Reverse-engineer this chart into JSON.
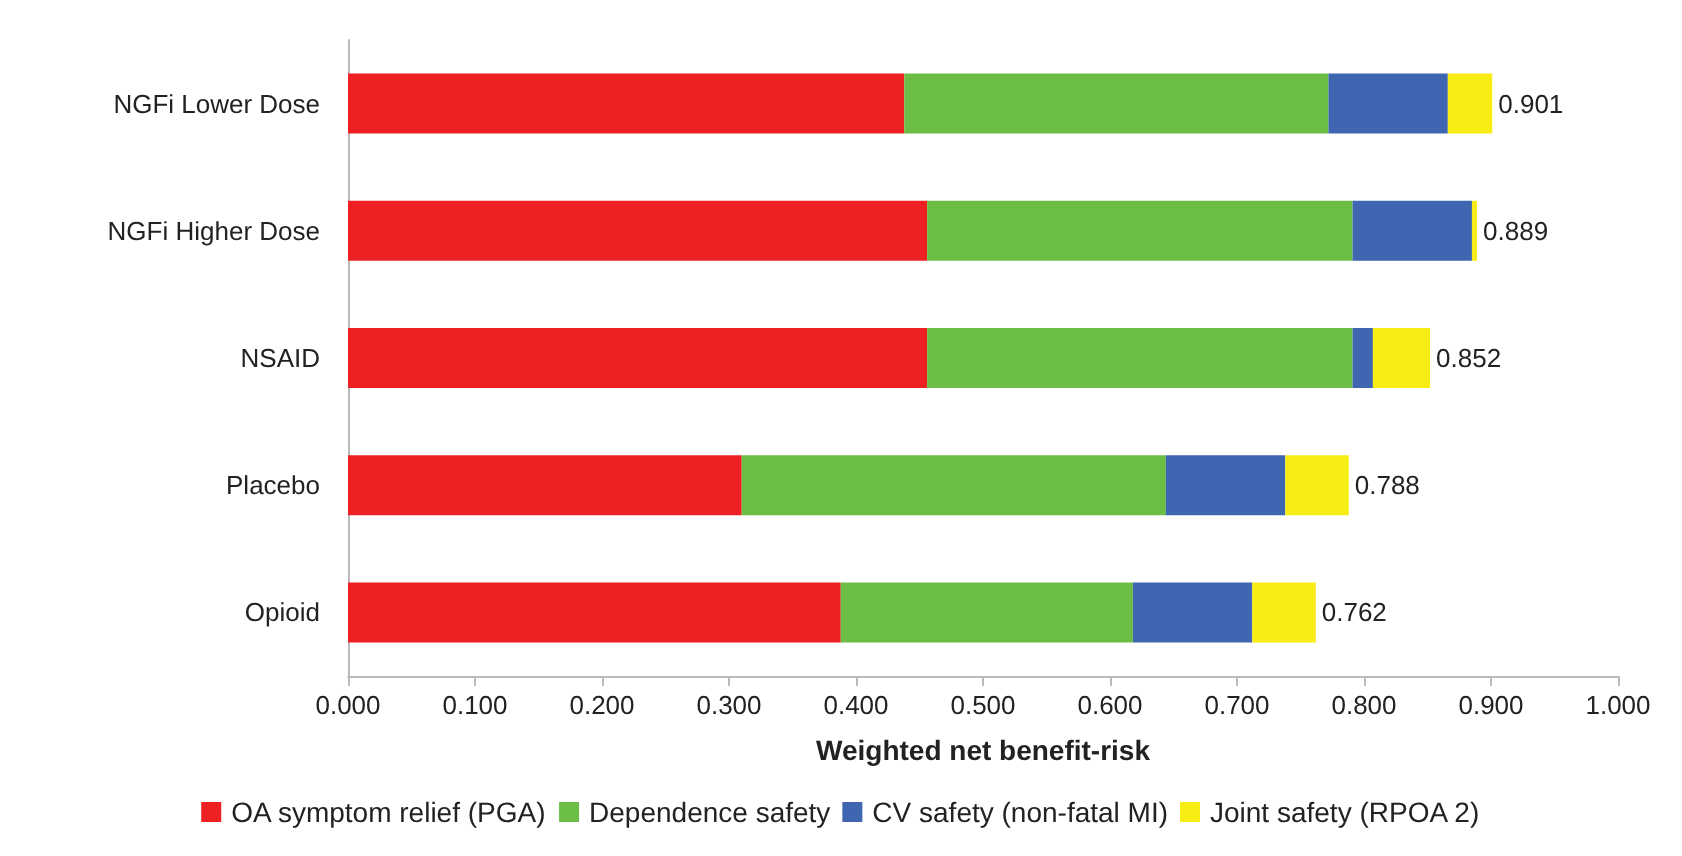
{
  "chart_data": {
    "type": "bar",
    "orientation": "horizontal",
    "stacked": true,
    "xlabel": "Weighted net benefit-risk",
    "categories": [
      "NGFi Lower Dose",
      "NGFi Higher Dose",
      "NSAID",
      "Placebo",
      "Opioid"
    ],
    "series": [
      {
        "name": "OA symptom relief (PGA)",
        "color": "#ed2024",
        "values": [
          0.438,
          0.456,
          0.456,
          0.31,
          0.388
        ]
      },
      {
        "name": "Dependence safety",
        "color": "#6cbd45",
        "values": [
          0.334,
          0.335,
          0.335,
          0.334,
          0.23
        ]
      },
      {
        "name": "CV safety (non-fatal MI)",
        "color": "#3f67b1",
        "values": [
          0.094,
          0.094,
          0.016,
          0.094,
          0.094
        ]
      },
      {
        "name": "Joint safety (RPOA 2)",
        "color": "#f7ec13",
        "values": [
          0.035,
          0.004,
          0.045,
          0.05,
          0.05
        ]
      }
    ],
    "totals": [
      "0.901",
      "0.889",
      "0.852",
      "0.788",
      "0.762"
    ],
    "xlim": [
      0,
      1
    ],
    "xticks": [
      {
        "value": 0,
        "label": "0.000"
      },
      {
        "value": 0.1,
        "label": "0.100"
      },
      {
        "value": 0.2,
        "label": "0.200"
      },
      {
        "value": 0.3,
        "label": "0.300"
      },
      {
        "value": 0.4,
        "label": "0.400"
      },
      {
        "value": 0.5,
        "label": "0.500"
      },
      {
        "value": 0.6,
        "label": "0.600"
      },
      {
        "value": 0.7,
        "label": "0.700"
      },
      {
        "value": 0.8,
        "label": "0.800"
      },
      {
        "value": 0.9,
        "label": "0.900"
      },
      {
        "value": 1,
        "label": "1.000"
      }
    ],
    "grid": false,
    "legend": "bottom"
  }
}
